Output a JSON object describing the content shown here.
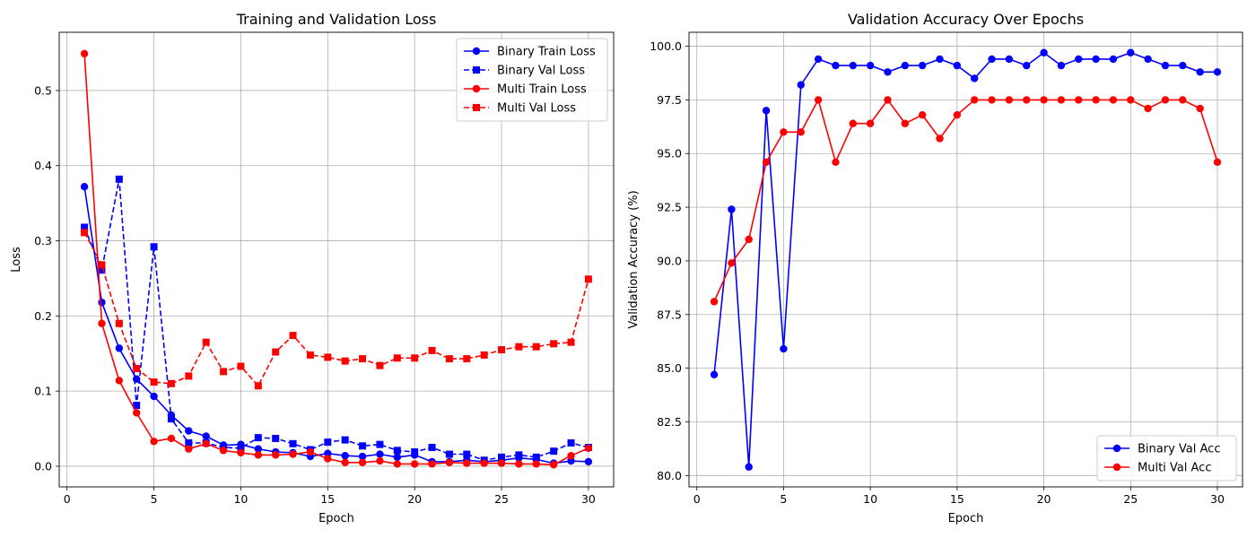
{
  "chart_data": [
    {
      "type": "line",
      "title": "Training and Validation Loss",
      "xlabel": "Epoch",
      "ylabel": "Loss",
      "xlim": [
        -0.45,
        31.45
      ],
      "ylim": [
        -0.0275,
        0.5775
      ],
      "xticks": [
        0,
        5,
        10,
        15,
        20,
        25,
        30
      ],
      "yticks": [
        0.0,
        0.1,
        0.2,
        0.3,
        0.4,
        0.5
      ],
      "ytick_format": 1,
      "grid": true,
      "legend_position": "top-right",
      "x": [
        1,
        2,
        3,
        4,
        5,
        6,
        7,
        8,
        9,
        10,
        11,
        12,
        13,
        14,
        15,
        16,
        17,
        18,
        19,
        20,
        21,
        22,
        23,
        24,
        25,
        26,
        27,
        28,
        29,
        30
      ],
      "series": [
        {
          "name": "Binary Train Loss",
          "color": "#0000ff",
          "linestyle": "solid",
          "marker": "circle",
          "values": [
            0.372,
            0.218,
            0.157,
            0.116,
            0.093,
            0.068,
            0.047,
            0.04,
            0.028,
            0.029,
            0.023,
            0.019,
            0.018,
            0.013,
            0.017,
            0.014,
            0.013,
            0.016,
            0.012,
            0.015,
            0.006,
            0.006,
            0.008,
            0.006,
            0.008,
            0.011,
            0.009,
            0.004,
            0.007,
            0.006
          ]
        },
        {
          "name": "Binary Val Loss",
          "color": "#0000ff",
          "linestyle": "dashed",
          "marker": "square",
          "values": [
            0.318,
            0.261,
            0.382,
            0.081,
            0.292,
            0.063,
            0.031,
            0.031,
            0.025,
            0.024,
            0.038,
            0.037,
            0.03,
            0.022,
            0.032,
            0.035,
            0.027,
            0.029,
            0.021,
            0.019,
            0.025,
            0.016,
            0.016,
            0.008,
            0.012,
            0.015,
            0.012,
            0.02,
            0.031,
            0.025
          ]
        },
        {
          "name": "Multi Train Loss",
          "color": "#ff0000",
          "linestyle": "solid",
          "marker": "circle",
          "values": [
            0.549,
            0.19,
            0.114,
            0.071,
            0.033,
            0.037,
            0.023,
            0.03,
            0.021,
            0.018,
            0.015,
            0.015,
            0.016,
            0.019,
            0.01,
            0.005,
            0.005,
            0.007,
            0.003,
            0.003,
            0.003,
            0.005,
            0.004,
            0.004,
            0.004,
            0.003,
            0.003,
            0.002,
            0.014,
            0.024
          ]
        },
        {
          "name": "Multi Val Loss",
          "color": "#ff0000",
          "linestyle": "dashed",
          "marker": "square",
          "values": [
            0.311,
            0.268,
            0.19,
            0.13,
            0.112,
            0.11,
            0.12,
            0.165,
            0.126,
            0.133,
            0.107,
            0.152,
            0.174,
            0.148,
            0.145,
            0.14,
            0.143,
            0.134,
            0.144,
            0.144,
            0.154,
            0.143,
            0.143,
            0.148,
            0.155,
            0.159,
            0.159,
            0.163,
            0.165,
            0.249
          ]
        }
      ]
    },
    {
      "type": "line",
      "title": "Validation Accuracy Over Epochs",
      "xlabel": "Epoch",
      "ylabel": "Validation Accuracy (%)",
      "xlim": [
        -0.45,
        31.45
      ],
      "ylim": [
        79.47,
        100.65
      ],
      "xticks": [
        0,
        5,
        10,
        15,
        20,
        25,
        30
      ],
      "yticks": [
        80.0,
        82.5,
        85.0,
        87.5,
        90.0,
        92.5,
        95.0,
        97.5,
        100.0
      ],
      "ytick_format": 1,
      "grid": true,
      "legend_position": "bottom-right",
      "x": [
        1,
        2,
        3,
        4,
        5,
        6,
        7,
        8,
        9,
        10,
        11,
        12,
        13,
        14,
        15,
        16,
        17,
        18,
        19,
        20,
        21,
        22,
        23,
        24,
        25,
        26,
        27,
        28,
        29,
        30
      ],
      "series": [
        {
          "name": "Binary Val Acc",
          "color": "#0000ff",
          "linestyle": "solid",
          "marker": "circle",
          "values": [
            84.7,
            92.4,
            80.4,
            97.0,
            85.9,
            98.2,
            99.4,
            99.1,
            99.1,
            99.1,
            98.8,
            99.1,
            99.1,
            99.4,
            99.1,
            98.5,
            99.4,
            99.4,
            99.1,
            99.7,
            99.1,
            99.4,
            99.4,
            99.4,
            99.7,
            99.4,
            99.1,
            99.1,
            98.8,
            98.8
          ]
        },
        {
          "name": "Multi Val Acc",
          "color": "#ff0000",
          "linestyle": "solid",
          "marker": "circle",
          "values": [
            88.1,
            89.9,
            91.0,
            94.6,
            96.0,
            96.0,
            97.5,
            94.6,
            96.4,
            96.4,
            97.5,
            96.4,
            96.8,
            95.7,
            96.8,
            97.5,
            97.5,
            97.5,
            97.5,
            97.5,
            97.5,
            97.5,
            97.5,
            97.5,
            97.5,
            97.1,
            97.5,
            97.5,
            97.1,
            94.6
          ]
        }
      ]
    }
  ]
}
